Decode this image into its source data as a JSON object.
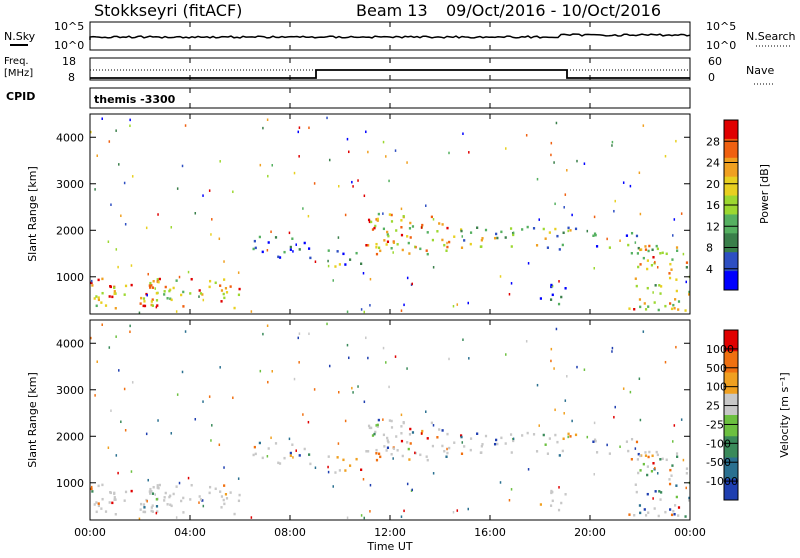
{
  "header": {
    "station": "Stokkseyri (fitACF)",
    "beam": "Beam 13",
    "dates": "09/Oct/2016 - 10/Oct/2016"
  },
  "top_panels": {
    "nsky_label": "N.Sky",
    "nsky_ticks": [
      "10^5",
      "10^0"
    ],
    "nsearch_label": "N.Search",
    "nsearch_ticks": [
      "10^5",
      "10^0"
    ],
    "freq_label": "Freq.",
    "freq_unit": "[MHz]",
    "freq_ticks": [
      "18",
      "8"
    ],
    "nave_label": "Nave",
    "nave_ticks": [
      "60",
      "0"
    ],
    "cpid_label": "CPID",
    "cpid_value": "themis -3300"
  },
  "chart_data": [
    {
      "type": "heatmap",
      "name": "power",
      "ylabel": "Slant Range [km]",
      "y_ticks": [
        "4000",
        "3000",
        "2000",
        "1000"
      ],
      "ylim": [
        200,
        4500
      ],
      "colorbar": {
        "label": "Power [dB]",
        "ticks": [
          "28",
          "24",
          "20",
          "16",
          "12",
          "8",
          "4"
        ],
        "colors": [
          "#0000ff",
          "#2e4fc2",
          "#3a7f4a",
          "#55b060",
          "#9cd830",
          "#e8d020",
          "#f0a020",
          "#f06010",
          "#e00000"
        ]
      }
    },
    {
      "type": "heatmap",
      "name": "velocity",
      "ylabel": "Slant Range [km]",
      "y_ticks": [
        "4000",
        "3000",
        "2000",
        "1000"
      ],
      "ylim": [
        200,
        4500
      ],
      "colorbar": {
        "label": "Velocity [m s⁻¹]",
        "ticks": [
          "1000",
          "500",
          "100",
          "25",
          "-25",
          "-100",
          "-500",
          "-1000"
        ],
        "colors": [
          "#1f3fb0",
          "#2a7090",
          "#3a8a5a",
          "#6cc040",
          "#c8c8c8",
          "#f0a020",
          "#f07010",
          "#e00000"
        ]
      }
    }
  ],
  "x_axis": {
    "ticks": [
      "00:00",
      "04:00",
      "08:00",
      "12:00",
      "16:00",
      "20:00",
      "00:00"
    ],
    "label": "Time UT"
  }
}
